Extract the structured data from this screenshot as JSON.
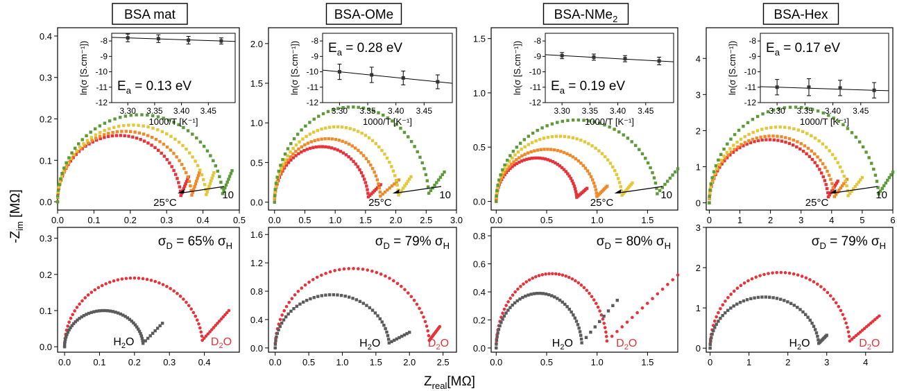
{
  "figure": {
    "ylabel": "-Z",
    "ylabel_sub": "im",
    "ylabel_unit": " [MΩ]",
    "xlabel": "Z",
    "xlabel_sub": "real",
    "xlabel_unit": "[MΩ]"
  },
  "colors": {
    "t25": "#e8323a",
    "t2": "#f08a28",
    "t3": "#e2c83a",
    "t4": "#5c9a3a",
    "h2o": "#5b5b5b",
    "d2o": "#e8323a",
    "inset_line": "#000000"
  },
  "chart_data": [
    {
      "panel": 1,
      "title": "BSA mat",
      "top": {
        "type": "scatter",
        "xlim": [
          0,
          0.5
        ],
        "ylim": [
          -0.02,
          0.42
        ],
        "xticks": [
          0.0,
          0.1,
          0.2,
          0.3,
          0.4,
          0.5
        ],
        "xtick_labels": [
          "0.0",
          "0.1",
          "0.2",
          "0.3",
          "0.4",
          "0.5"
        ],
        "yticks": [
          0.0,
          0.1,
          0.2,
          0.3,
          0.4
        ],
        "ytick_labels": [
          "0.0",
          "0.1",
          "0.2",
          "0.3",
          "0.4"
        ],
        "series": [
          {
            "color_key": "t25",
            "arc_end": 0.34,
            "peak": 0.16,
            "tail_end": [
              0.36,
              0.06
            ]
          },
          {
            "color_key": "t2",
            "arc_end": 0.37,
            "peak": 0.17,
            "tail_end": [
              0.39,
              0.07
            ]
          },
          {
            "color_key": "t3",
            "arc_end": 0.41,
            "peak": 0.185,
            "tail_end": [
              0.43,
              0.07
            ]
          },
          {
            "color_key": "t4",
            "arc_end": 0.455,
            "peak": 0.21,
            "tail_end": [
              0.48,
              0.075
            ]
          }
        ],
        "arrow_label": "25°C",
        "arrow_end_label": "10",
        "inset": {
          "ylabel": "ln(σ [S.cm⁻¹])",
          "xlabel": "1000/T [K⁻¹]",
          "ea_label": "E",
          "ea_sub": "a",
          "ea_value": " = 0.13 eV",
          "xlim": [
            3.27,
            3.5
          ],
          "ylim": [
            -12,
            -7.5
          ],
          "xticks": [
            3.3,
            3.35,
            3.4,
            3.45
          ],
          "xtick_labels": [
            "3.30",
            "3.35",
            "3.40",
            "3.45"
          ],
          "yticks": [
            -8,
            -9,
            -10,
            -11,
            -12
          ],
          "ytick_labels": [
            "-8",
            "-9",
            "-10",
            "-11",
            "-12"
          ],
          "points": [
            [
              3.3,
              -7.8,
              0.25
            ],
            [
              3.357,
              -7.85,
              0.25
            ],
            [
              3.413,
              -7.95,
              0.25
            ],
            [
              3.474,
              -8.0,
              0.2
            ]
          ]
        }
      },
      "bottom": {
        "type": "scatter",
        "xlim": [
          -0.02,
          0.5
        ],
        "ylim": [
          -0.015,
          0.33
        ],
        "xticks": [
          0.0,
          0.1,
          0.2,
          0.3,
          0.4
        ],
        "xtick_labels": [
          "0.0",
          "0.1",
          "0.2",
          "0.3",
          "0.4"
        ],
        "yticks": [
          0.0,
          0.1,
          0.2,
          0.3
        ],
        "ytick_labels": [
          "0.0",
          "0.1",
          "0.2",
          "0.3"
        ],
        "sigma_label": "65%",
        "h2o": {
          "arc_end": 0.225,
          "peak": 0.1,
          "tail_end": [
            0.28,
            0.065
          ]
        },
        "d2o": {
          "arc_end": 0.395,
          "peak": 0.19,
          "tail_end": [
            0.47,
            0.1
          ]
        }
      }
    },
    {
      "panel": 2,
      "title": "BSA-OMe",
      "top": {
        "type": "scatter",
        "xlim": [
          -0.1,
          3.0
        ],
        "ylim": [
          -0.1,
          2.2
        ],
        "xticks": [
          0.0,
          0.5,
          1.0,
          1.5,
          2.0,
          2.5,
          3.0
        ],
        "xtick_labels": [
          "0.0",
          "0.5",
          "1.0",
          "1.5",
          "2.0",
          "2.5",
          "3.0"
        ],
        "yticks": [
          0.0,
          0.5,
          1.0,
          1.5,
          2.0
        ],
        "ytick_labels": [
          "0.0",
          "0.5",
          "1.0",
          "1.5",
          "2.0"
        ],
        "series": [
          {
            "color_key": "t25",
            "arc_end": 1.55,
            "peak": 0.7,
            "tail_end": [
              1.75,
              0.22
            ]
          },
          {
            "color_key": "t2",
            "arc_end": 1.75,
            "peak": 0.8,
            "tail_end": [
              2.05,
              0.28
            ]
          },
          {
            "color_key": "t3",
            "arc_end": 2.05,
            "peak": 0.95,
            "tail_end": [
              2.25,
              0.32
            ]
          },
          {
            "color_key": "t4",
            "arc_end": 2.55,
            "peak": 1.2,
            "tail_end": [
              2.8,
              0.38
            ]
          }
        ],
        "arrow_label": "25°C",
        "arrow_end_label": "10",
        "inset": {
          "ylabel": "ln(σ [S.cm⁻¹])",
          "xlabel": "1000/T [K⁻¹]",
          "ea_label": "E",
          "ea_sub": "a",
          "ea_value": " = 0.28 eV",
          "xlim": [
            3.27,
            3.5
          ],
          "ylim": [
            -12,
            -7.5
          ],
          "xticks": [
            3.3,
            3.35,
            3.4,
            3.45
          ],
          "xtick_labels": [
            "3.30",
            "3.35",
            "3.40",
            "3.45"
          ],
          "yticks": [
            -8,
            -9,
            -10,
            -11,
            -12
          ],
          "ytick_labels": [
            "-8",
            "-9",
            "-10",
            "-11",
            "-12"
          ],
          "points": [
            [
              3.3,
              -10.0,
              0.5
            ],
            [
              3.357,
              -10.2,
              0.5
            ],
            [
              3.413,
              -10.4,
              0.45
            ],
            [
              3.474,
              -10.65,
              0.45
            ]
          ]
        }
      },
      "bottom": {
        "type": "scatter",
        "xlim": [
          -0.1,
          2.7
        ],
        "ylim": [
          -0.06,
          1.7
        ],
        "xticks": [
          0.0,
          0.5,
          1.0,
          1.5,
          2.0,
          2.5
        ],
        "xtick_labels": [
          "0.0",
          "0.5",
          "1.0",
          "1.5",
          "2.0",
          "2.5"
        ],
        "yticks": [
          0.0,
          0.4,
          0.8,
          1.2,
          1.6
        ],
        "ytick_labels": [
          "0.0",
          "0.4",
          "0.8",
          "1.2",
          "1.6"
        ],
        "sigma_label": "79%",
        "h2o": {
          "arc_end": 1.7,
          "peak": 0.75,
          "tail_end": [
            2.0,
            0.22
          ]
        },
        "d2o": {
          "arc_end": 2.3,
          "peak": 1.12,
          "tail_end": [
            2.45,
            0.3
          ]
        }
      }
    },
    {
      "panel": 3,
      "title": "BSA-NMe",
      "title_sub": "2",
      "top": {
        "type": "scatter",
        "xlim": [
          -0.05,
          1.8
        ],
        "ylim": [
          -0.08,
          1.6
        ],
        "xticks": [
          0.0,
          0.5,
          1.0,
          1.5
        ],
        "xtick_labels": [
          "0.0",
          "0.5",
          "1.0",
          "1.5"
        ],
        "yticks": [
          0.0,
          0.5,
          1.0,
          1.5
        ],
        "ytick_labels": [
          "0.0",
          "0.5",
          "1.0",
          "1.5"
        ],
        "series": [
          {
            "color_key": "t25",
            "arc_end": 0.8,
            "peak": 0.4,
            "tail_end": [
              0.9,
              0.12
            ]
          },
          {
            "color_key": "t2",
            "arc_end": 1.0,
            "peak": 0.48,
            "tail_end": [
              1.1,
              0.14
            ]
          },
          {
            "color_key": "t3",
            "arc_end": 1.25,
            "peak": 0.6,
            "tail_end": [
              1.35,
              0.17
            ]
          },
          {
            "color_key": "t4",
            "arc_end": 1.6,
            "peak": 0.75,
            "tail_end": [
              1.8,
              0.3
            ]
          }
        ],
        "arrow_label": "25°C",
        "arrow_end_label": "10",
        "inset": {
          "ylabel": "ln(σ [S.cm⁻¹])",
          "xlabel": "1000/T [K⁻¹]",
          "ea_label": "E",
          "ea_sub": "a",
          "ea_value": " = 0.19 eV",
          "xlim": [
            3.27,
            3.5
          ],
          "ylim": [
            -12,
            -7.5
          ],
          "xticks": [
            3.3,
            3.35,
            3.4,
            3.45
          ],
          "xtick_labels": [
            "3.30",
            "3.35",
            "3.40",
            "3.45"
          ],
          "yticks": [
            -8,
            -9,
            -10,
            -11,
            -12
          ],
          "ytick_labels": [
            "-8",
            "-9",
            "-10",
            "-11",
            "-12"
          ],
          "points": [
            [
              3.3,
              -8.95,
              0.2
            ],
            [
              3.357,
              -9.05,
              0.2
            ],
            [
              3.413,
              -9.15,
              0.2
            ],
            [
              3.474,
              -9.3,
              0.25
            ]
          ]
        }
      },
      "bottom": {
        "type": "scatter",
        "xlim": [
          -0.05,
          1.8
        ],
        "ylim": [
          -0.03,
          0.86
        ],
        "xticks": [
          0.0,
          0.5,
          1.0,
          1.5
        ],
        "xtick_labels": [
          "0.0",
          "0.5",
          "1.0",
          "1.5"
        ],
        "yticks": [
          0.0,
          0.2,
          0.4,
          0.6,
          0.8
        ],
        "ytick_labels": [
          "0.0",
          "0.2",
          "0.4",
          "0.6",
          "0.8"
        ],
        "sigma_label": "80%",
        "h2o": {
          "arc_end": 0.85,
          "peak": 0.39,
          "tail_end": [
            1.2,
            0.34
          ]
        },
        "d2o": {
          "arc_end": 1.1,
          "peak": 0.53,
          "tail_end": [
            1.8,
            0.52
          ]
        }
      }
    },
    {
      "panel": 4,
      "title": "BSA-Hex",
      "top": {
        "type": "scatter",
        "xlim": [
          -0.1,
          6.0
        ],
        "ylim": [
          -0.2,
          4.85
        ],
        "xticks": [
          0,
          1,
          2,
          3,
          4,
          5,
          6
        ],
        "xtick_labels": [
          "0",
          "1",
          "2",
          "3",
          "4",
          "5",
          "6"
        ],
        "yticks": [
          0,
          1,
          2,
          3,
          4
        ],
        "ytick_labels": [
          "0",
          "1",
          "2",
          "3",
          "4"
        ],
        "series": [
          {
            "color_key": "t25",
            "arc_end": 3.9,
            "peak": 1.75,
            "tail_end": [
              4.2,
              0.6
            ]
          },
          {
            "color_key": "t2",
            "arc_end": 4.1,
            "peak": 1.85,
            "tail_end": [
              4.5,
              0.65
            ]
          },
          {
            "color_key": "t3",
            "arc_end": 4.55,
            "peak": 2.1,
            "tail_end": [
              5.0,
              0.7
            ]
          },
          {
            "color_key": "t4",
            "arc_end": 5.55,
            "peak": 2.65,
            "tail_end": [
              6.0,
              0.85
            ]
          }
        ],
        "arrow_label": "25°C",
        "arrow_end_label": "10",
        "inset": {
          "ylabel": "ln(σ [S.cm⁻¹])",
          "xlabel": "1000/T [K⁻¹]",
          "ea_label": "E",
          "ea_sub": "a",
          "ea_value": " = 0.17 eV",
          "xlim": [
            3.27,
            3.5
          ],
          "ylim": [
            -12,
            -7.5
          ],
          "xticks": [
            3.3,
            3.35,
            3.4,
            3.45
          ],
          "xtick_labels": [
            "3.30",
            "3.35",
            "3.40",
            "3.45"
          ],
          "yticks": [
            -8,
            -9,
            -10,
            -11,
            -12
          ],
          "ytick_labels": [
            "-8",
            "-9",
            "-10",
            "-11",
            "-12"
          ],
          "points": [
            [
              3.3,
              -11.0,
              0.5
            ],
            [
              3.357,
              -11.0,
              0.55
            ],
            [
              3.413,
              -11.05,
              0.5
            ],
            [
              3.474,
              -11.2,
              0.5
            ]
          ]
        }
      },
      "bottom": {
        "type": "scatter",
        "xlim": [
          -0.1,
          4.7
        ],
        "ylim": [
          -0.1,
          3.0
        ],
        "xticks": [
          0,
          1,
          2,
          3,
          4
        ],
        "xtick_labels": [
          "0",
          "1",
          "2",
          "3",
          "4"
        ],
        "yticks": [
          0,
          1,
          2,
          3
        ],
        "ytick_labels": [
          "0",
          "1",
          "2",
          "3"
        ],
        "sigma_label": "79%",
        "h2o": {
          "arc_end": 2.8,
          "peak": 1.27,
          "tail_end": [
            3.0,
            0.32
          ]
        },
        "d2o": {
          "arc_end": 3.6,
          "peak": 1.88,
          "tail_end": [
            4.35,
            0.8
          ]
        }
      }
    }
  ]
}
